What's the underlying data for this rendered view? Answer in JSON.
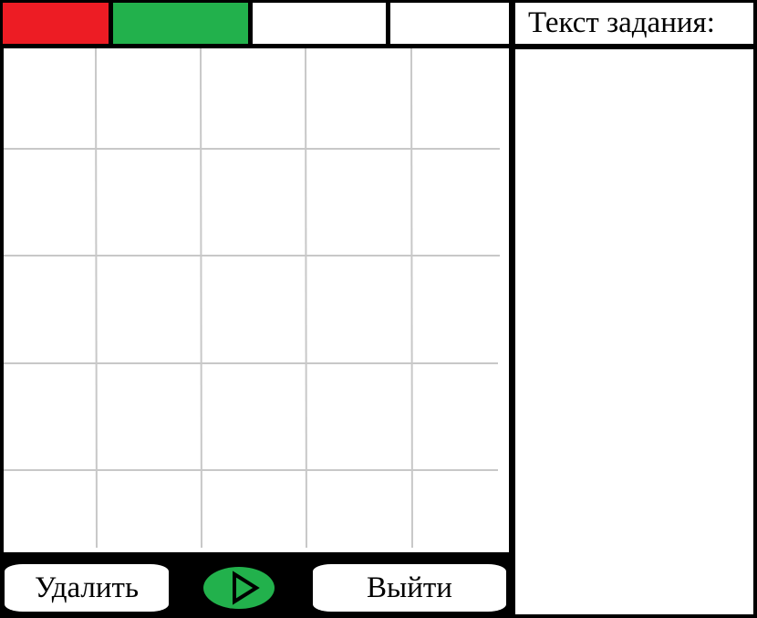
{
  "colors": {
    "tab1": "#ed1c24",
    "tab2": "#22b14c",
    "tab3": "#ffffff",
    "tab4": "#ffffff",
    "play": "#22b14c"
  },
  "task": {
    "header": "Текст задания:"
  },
  "controls": {
    "delete_label": "Удалить",
    "exit_label": "Выйти",
    "play_icon": "play-icon"
  }
}
